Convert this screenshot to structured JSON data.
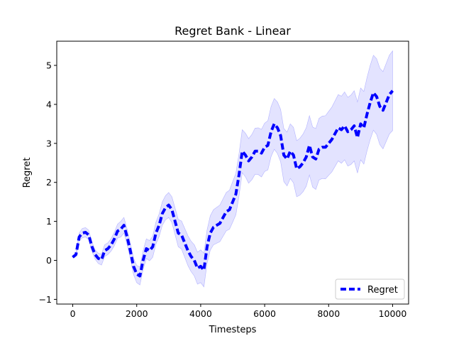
{
  "chart_data": {
    "type": "line",
    "title": "Regret Bank - Linear",
    "xlabel": "Timesteps",
    "ylabel": "Regret",
    "xlim": [
      -500,
      10500
    ],
    "ylim": [
      -1.12,
      5.62
    ],
    "x_ticks": [
      0,
      2000,
      4000,
      6000,
      8000,
      10000
    ],
    "y_ticks": [
      -1,
      0,
      1,
      2,
      3,
      4,
      5
    ],
    "legend": {
      "position": "lower-right"
    },
    "grid": false,
    "colors": {
      "line": "#0000ff",
      "band": "#ccccff"
    },
    "series": [
      {
        "name": "Regret",
        "style": "dashed",
        "x": [
          0,
          100,
          200,
          300,
          400,
          500,
          600,
          700,
          800,
          900,
          1000,
          1100,
          1200,
          1300,
          1400,
          1500,
          1600,
          1700,
          1800,
          1900,
          2000,
          2100,
          2200,
          2300,
          2400,
          2500,
          2600,
          2700,
          2800,
          2900,
          3000,
          3100,
          3200,
          3300,
          3400,
          3500,
          3600,
          3700,
          3800,
          3900,
          4000,
          4100,
          4200,
          4300,
          4400,
          4500,
          4600,
          4700,
          4800,
          4900,
          5000,
          5100,
          5200,
          5300,
          5400,
          5500,
          5600,
          5700,
          5800,
          5900,
          6000,
          6100,
          6200,
          6300,
          6400,
          6500,
          6600,
          6700,
          6800,
          6900,
          7000,
          7100,
          7200,
          7300,
          7400,
          7500,
          7600,
          7700,
          7800,
          7900,
          8000,
          8100,
          8200,
          8300,
          8400,
          8500,
          8600,
          8700,
          8800,
          8900,
          9000,
          9100,
          9200,
          9300,
          9400,
          9500,
          9600,
          9700,
          9800,
          9900,
          10000
        ],
        "y": [
          0.08,
          0.15,
          0.6,
          0.7,
          0.72,
          0.65,
          0.35,
          0.15,
          0.05,
          0.02,
          0.25,
          0.3,
          0.4,
          0.55,
          0.75,
          0.8,
          0.9,
          0.6,
          0.25,
          -0.15,
          -0.35,
          -0.4,
          0.0,
          0.3,
          0.25,
          0.35,
          0.7,
          0.9,
          1.2,
          1.35,
          1.42,
          1.3,
          1.0,
          0.7,
          0.65,
          0.45,
          0.25,
          0.1,
          0.0,
          -0.2,
          -0.15,
          -0.25,
          0.35,
          0.7,
          0.85,
          0.9,
          0.95,
          1.1,
          1.25,
          1.3,
          1.5,
          1.7,
          2.2,
          2.8,
          2.7,
          2.55,
          2.65,
          2.8,
          2.8,
          2.75,
          2.9,
          2.95,
          3.3,
          3.5,
          3.4,
          3.2,
          2.7,
          2.6,
          2.8,
          2.7,
          2.35,
          2.4,
          2.5,
          2.65,
          2.95,
          2.65,
          2.6,
          2.85,
          2.9,
          2.9,
          3.0,
          3.1,
          3.25,
          3.4,
          3.35,
          3.45,
          3.3,
          3.35,
          3.45,
          3.15,
          3.5,
          3.4,
          3.75,
          4.05,
          4.3,
          4.2,
          3.95,
          3.85,
          4.05,
          4.25,
          4.35
        ],
        "band_lower": [
          0.08,
          0.1,
          0.5,
          0.58,
          0.6,
          0.53,
          0.23,
          0.03,
          -0.08,
          -0.12,
          0.1,
          0.15,
          0.24,
          0.38,
          0.57,
          0.6,
          0.7,
          0.4,
          0.05,
          -0.36,
          -0.57,
          -0.63,
          -0.24,
          0.05,
          -0.01,
          0.08,
          0.42,
          0.61,
          0.9,
          1.04,
          1.1,
          0.97,
          0.66,
          0.35,
          0.29,
          0.08,
          -0.13,
          -0.29,
          -0.4,
          -0.61,
          -0.57,
          -0.68,
          -0.08,
          0.26,
          0.4,
          0.44,
          0.48,
          0.62,
          0.76,
          0.8,
          0.98,
          1.17,
          1.66,
          2.25,
          2.14,
          1.98,
          2.07,
          2.21,
          2.2,
          2.14,
          2.28,
          2.32,
          2.66,
          2.85,
          2.74,
          2.53,
          2.02,
          1.91,
          2.1,
          1.99,
          1.63,
          1.67,
          1.76,
          1.9,
          2.19,
          1.88,
          1.82,
          2.06,
          2.1,
          2.09,
          2.18,
          2.27,
          2.41,
          2.55,
          2.49,
          2.58,
          2.42,
          2.46,
          2.55,
          2.24,
          2.58,
          2.47,
          2.81,
          3.1,
          3.34,
          3.23,
          2.97,
          2.86,
          3.05,
          3.24,
          3.33
        ],
        "band_upper": [
          0.08,
          0.2,
          0.7,
          0.82,
          0.84,
          0.77,
          0.47,
          0.27,
          0.18,
          0.16,
          0.4,
          0.45,
          0.56,
          0.72,
          0.93,
          1.0,
          1.1,
          0.8,
          0.45,
          0.06,
          -0.13,
          -0.17,
          0.24,
          0.55,
          0.51,
          0.62,
          0.98,
          1.19,
          1.5,
          1.66,
          1.74,
          1.63,
          1.34,
          1.05,
          1.01,
          0.82,
          0.63,
          0.49,
          0.4,
          0.21,
          0.27,
          0.18,
          0.78,
          1.14,
          1.3,
          1.36,
          1.42,
          1.58,
          1.74,
          1.8,
          2.02,
          2.23,
          2.74,
          3.35,
          3.26,
          3.12,
          3.23,
          3.39,
          3.4,
          3.36,
          3.52,
          3.58,
          3.94,
          4.15,
          4.06,
          3.87,
          3.38,
          3.29,
          3.5,
          3.41,
          3.07,
          3.13,
          3.24,
          3.4,
          3.71,
          3.42,
          3.38,
          3.64,
          3.7,
          3.71,
          3.82,
          3.93,
          4.09,
          4.25,
          4.21,
          4.32,
          4.18,
          4.24,
          4.35,
          4.06,
          4.42,
          4.33,
          4.69,
          5.0,
          5.26,
          5.17,
          4.93,
          4.84,
          5.05,
          5.26,
          5.37
        ]
      }
    ]
  }
}
